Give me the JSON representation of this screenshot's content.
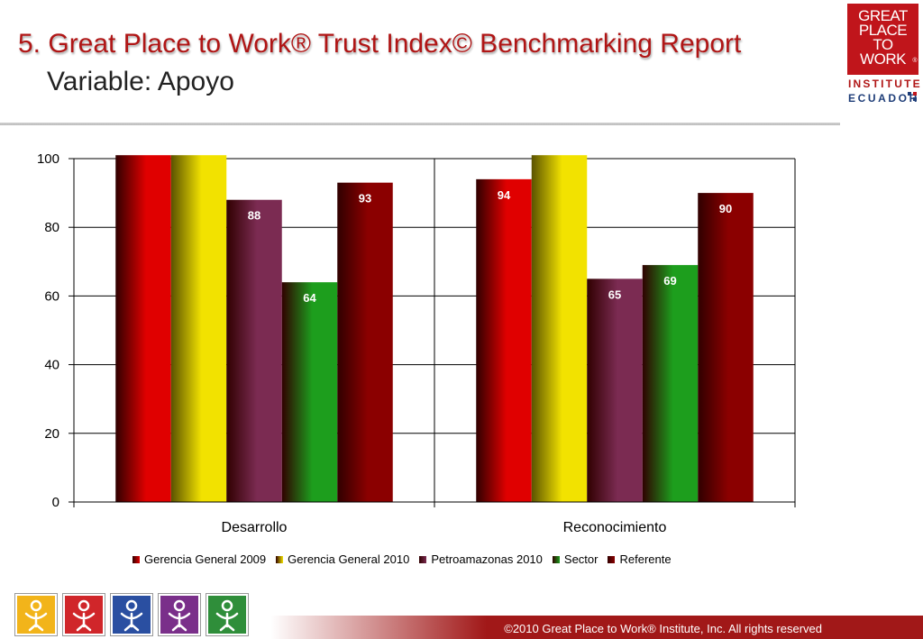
{
  "header": {
    "title": "5. Great Place to Work® Trust Index© Benchmarking Report",
    "subtitle": "Variable: Apoyo"
  },
  "logo": {
    "lines": [
      "GREAT",
      "PLACE",
      "TO",
      "WORK"
    ],
    "reg": "®",
    "institute": "INSTITUTE",
    "country": "ECUADOR"
  },
  "chart_data": {
    "type": "bar",
    "categories": [
      "Desarrollo",
      "Reconocimiento"
    ],
    "series": [
      {
        "name": "Gerencia General 2009",
        "values": [
          101,
          94
        ],
        "labels": [
          "",
          "94"
        ],
        "color": "#e00000"
      },
      {
        "name": "Gerencia General 2010",
        "values": [
          101,
          101
        ],
        "labels": [
          "",
          ""
        ],
        "color": "#f2e200"
      },
      {
        "name": "Petroamazonas 2010",
        "values": [
          88,
          65
        ],
        "labels": [
          "88",
          "65"
        ],
        "color": "#7b2b52"
      },
      {
        "name": "Sector",
        "values": [
          64,
          69
        ],
        "labels": [
          "64",
          "69"
        ],
        "color": "#1d9e1d"
      },
      {
        "name": "Referente",
        "values": [
          93,
          90
        ],
        "labels": [
          "93",
          "90"
        ],
        "color": "#8b0000"
      }
    ],
    "ylim": [
      0,
      100
    ],
    "yticks": [
      "0",
      "20",
      "40",
      "60",
      "80",
      "100"
    ],
    "grid": true,
    "legend": "bottom"
  },
  "footer": {
    "copyright": "©2010 Great Place to Work® Institute, Inc. All rights reserved"
  },
  "icons": [
    "spark-figure-icon",
    "group-circle-icon",
    "team-figures-icon",
    "people-arms-icon",
    "figure-cheer-icon"
  ],
  "colors": {
    "title": "#b01515",
    "footer_bar": "#a11818",
    "icon_tiles": [
      "#f2b41a",
      "#d0262a",
      "#2a4fa1",
      "#7a2f8a",
      "#2f8e3a"
    ]
  }
}
